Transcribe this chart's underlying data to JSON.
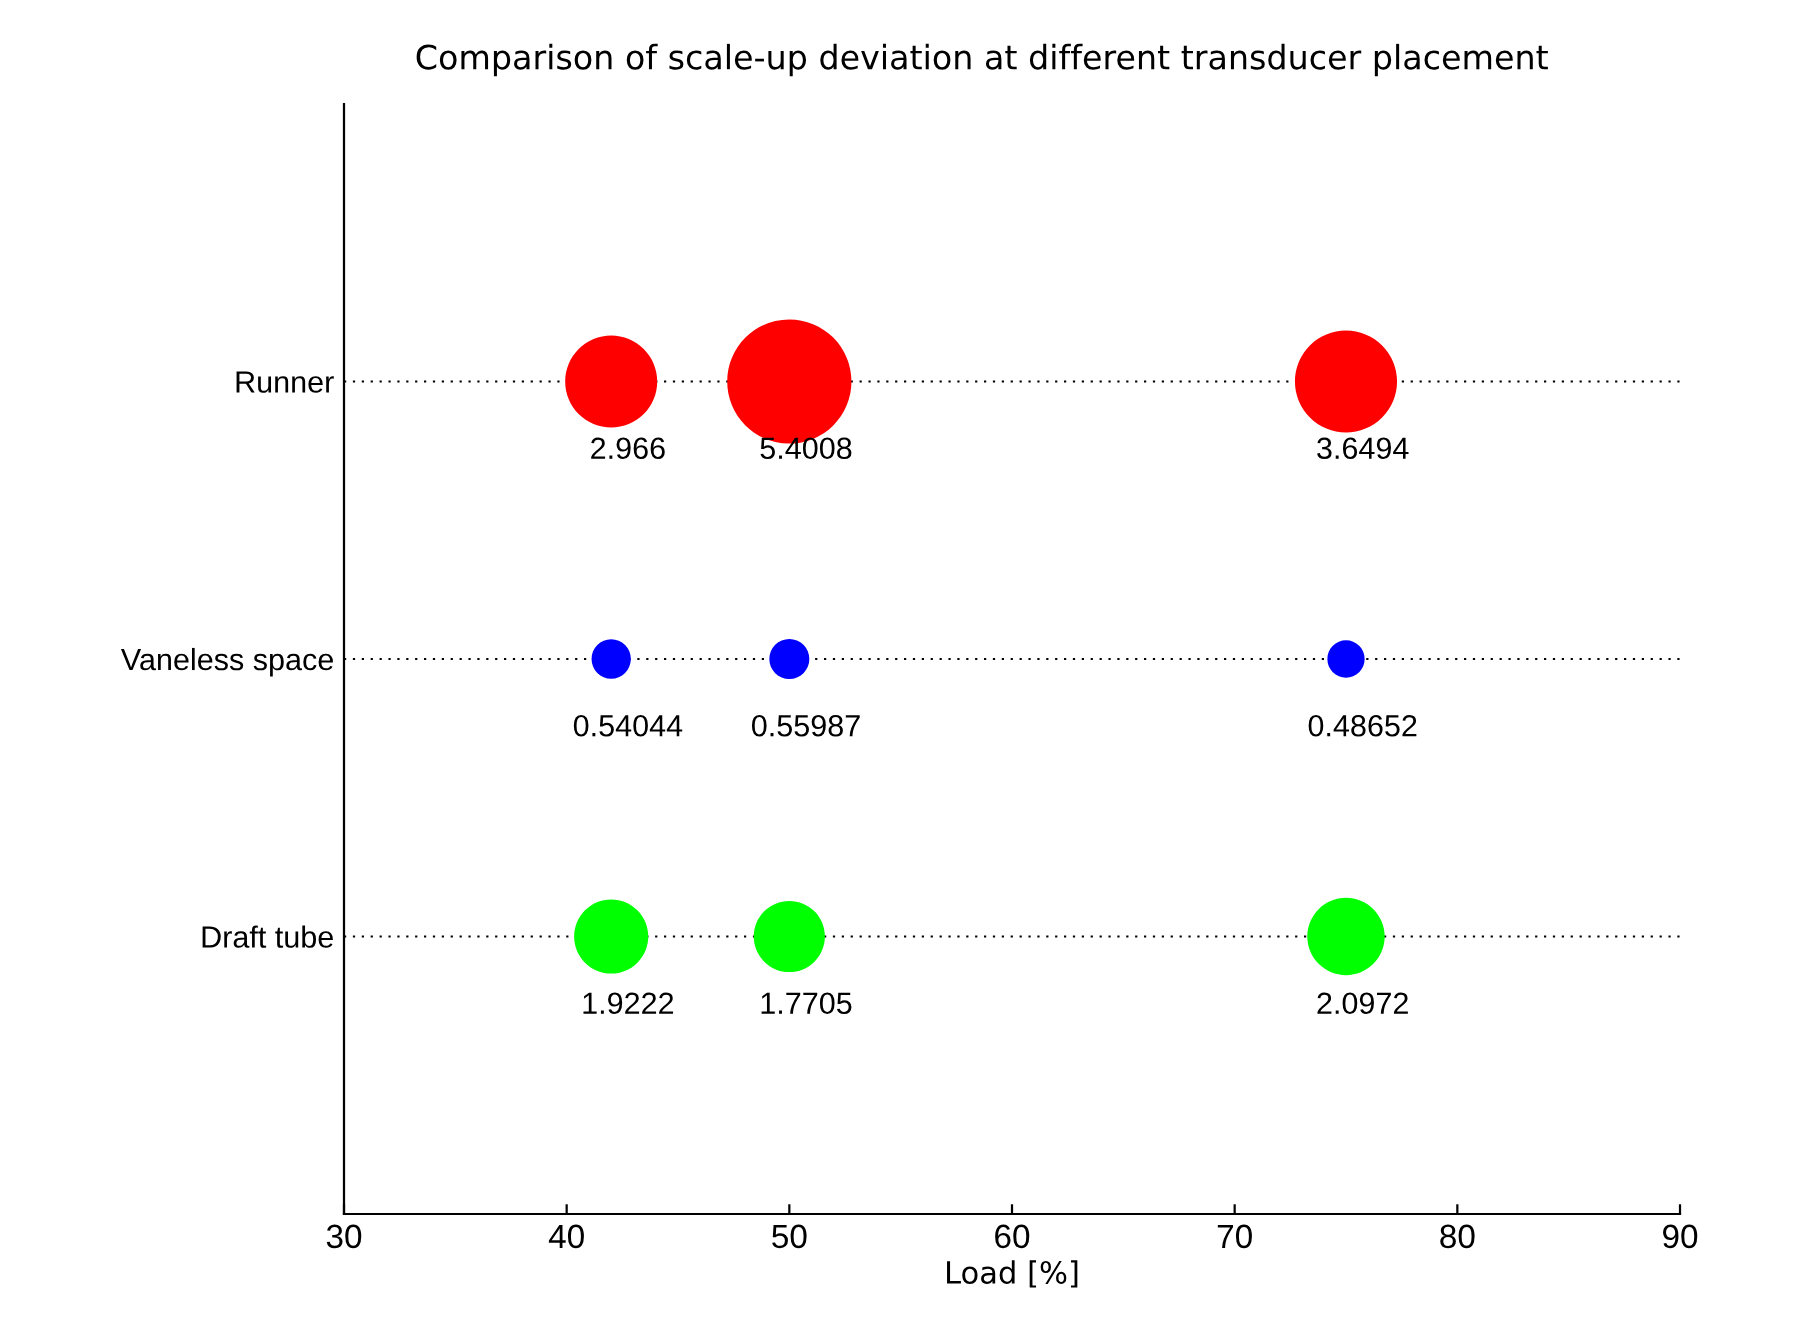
{
  "chart_data": {
    "type": "bubble",
    "title": "Comparison of scale-up deviation at different transducer placement",
    "xlabel": "Load [%]",
    "orientation": "horizontal",
    "categories": [
      "Runner",
      "Vaneless space",
      "Draft tube"
    ],
    "series": [
      {
        "colors": [
          "#ff0000",
          "#0000ff",
          "#00ff00"
        ],
        "values": [
          42,
          42,
          42
        ],
        "sizes": [
          2.966,
          0.54044,
          1.9222
        ],
        "value_labels": [
          "2.966",
          "0.54044",
          "1.9222"
        ]
      },
      {
        "colors": [
          "#ff0000",
          "#0000ff",
          "#00ff00"
        ],
        "values": [
          50,
          50,
          50
        ],
        "sizes": [
          5.4008,
          0.55987,
          1.7705
        ],
        "value_labels": [
          "5.4008",
          "0.55987",
          "1.7705"
        ]
      },
      {
        "colors": [
          "#ff0000",
          "#0000ff",
          "#00ff00"
        ],
        "values": [
          75,
          75,
          75
        ],
        "sizes": [
          3.6494,
          0.48652,
          2.0972
        ],
        "value_labels": [
          "3.6494",
          "0.48652",
          "2.0972"
        ]
      }
    ],
    "xlim": [
      30,
      90
    ],
    "xticks": [
      30,
      40,
      50,
      60,
      70,
      80,
      90
    ],
    "grid": "y"
  }
}
